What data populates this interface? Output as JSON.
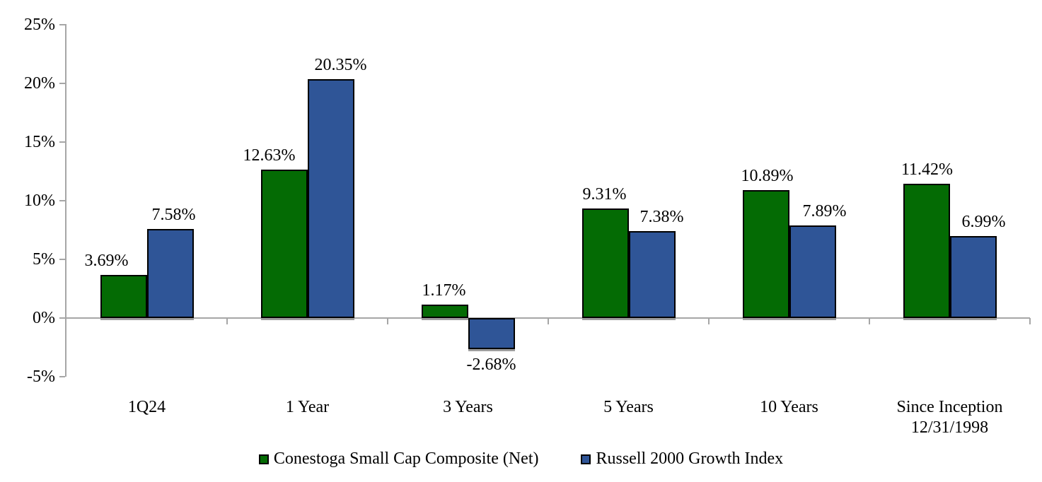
{
  "chart_data": {
    "type": "bar",
    "title": "",
    "xlabel": "",
    "ylabel": "",
    "grid": false,
    "legend_position": "bottom",
    "categories": [
      "1Q24",
      "1 Year",
      "3 Years",
      "5 Years",
      "10 Years",
      "Since Inception\n12/31/1998"
    ],
    "series": [
      {
        "name": "Conestoga Small Cap Composite (Net)",
        "color": "#046B04",
        "values": [
          3.69,
          12.63,
          1.17,
          9.31,
          10.89,
          11.42
        ],
        "labels": [
          "3.69%",
          "12.63%",
          "1.17%",
          "9.31%",
          "10.89%",
          "11.42%"
        ]
      },
      {
        "name": "Russell 2000 Growth Index",
        "color": "#2F5597",
        "values": [
          7.58,
          20.35,
          -2.68,
          7.38,
          7.89,
          6.99
        ],
        "labels": [
          "7.58%",
          "20.35%",
          "-2.68%",
          "7.38%",
          "7.89%",
          "6.99%"
        ]
      }
    ],
    "y_axis": {
      "min": -5,
      "max": 25,
      "ticks": [
        {
          "value": 25,
          "label": "25%"
        },
        {
          "value": 20,
          "label": "20%"
        },
        {
          "value": 15,
          "label": "15%"
        },
        {
          "value": 10,
          "label": "10%"
        },
        {
          "value": 5,
          "label": "5%"
        },
        {
          "value": 0,
          "label": "0%"
        },
        {
          "value": -5,
          "label": "-5%"
        }
      ]
    },
    "colors": {
      "axis": "#A6A6A6",
      "bar_border": "#000000",
      "bar_shadow": "#9E9E9E",
      "text": "#000000"
    }
  }
}
